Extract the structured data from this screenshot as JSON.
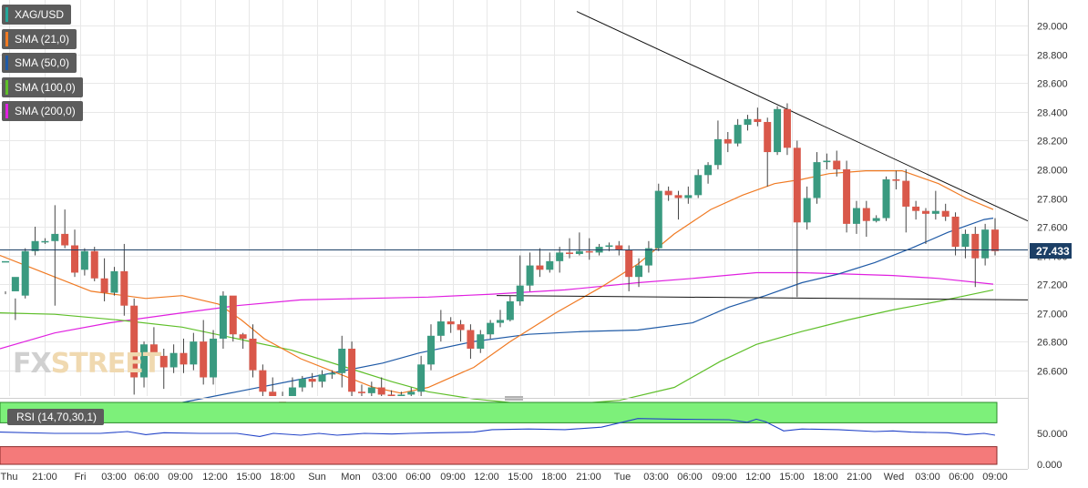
{
  "legend": [
    {
      "label": "XAG/USD",
      "color": "#26a69a"
    },
    {
      "label": "SMA (21,0)",
      "color": "#f07a23"
    },
    {
      "label": "SMA (50,0)",
      "color": "#1f5aa6"
    },
    {
      "label": "SMA (100,0)",
      "color": "#5fbf2a"
    },
    {
      "label": "SMA (200,0)",
      "color": "#e020e0"
    }
  ],
  "watermark": {
    "part1": "FX",
    "part2": "STREET"
  },
  "rsi_label": "RSI (14,70,30,1)",
  "colors": {
    "up": "#3a9a80",
    "down": "#d9584a",
    "grid": "#e8e8e8",
    "rsi_line": "#2344c8",
    "overbought": "#7df07a",
    "oversold": "#f47a7a"
  },
  "chart_data": {
    "type": "candlestick",
    "symbol": "XAG/USD",
    "ylim": [
      26.42,
      29.18
    ],
    "y_ticks": [
      "29.000",
      "28.800",
      "28.600",
      "28.400",
      "28.200",
      "28.000",
      "27.800",
      "27.600",
      "27.400",
      "27.200",
      "27.000",
      "26.800",
      "26.600"
    ],
    "current_price": "27.433",
    "x_ticks": [
      {
        "label": "Thu",
        "x": 10
      },
      {
        "label": "21:00",
        "x": 49
      },
      {
        "label": "Fri",
        "x": 88
      },
      {
        "label": "03:00",
        "x": 125
      },
      {
        "label": "06:00",
        "x": 161
      },
      {
        "label": "09:00",
        "x": 198
      },
      {
        "label": "12:00",
        "x": 236
      },
      {
        "label": "15:00",
        "x": 273
      },
      {
        "label": "18:00",
        "x": 310
      },
      {
        "label": "Sun",
        "x": 348
      },
      {
        "label": "Mon",
        "x": 385
      },
      {
        "label": "03:00",
        "x": 422
      },
      {
        "label": "06:00",
        "x": 459
      },
      {
        "label": "09:00",
        "x": 497
      },
      {
        "label": "12:00",
        "x": 534
      },
      {
        "label": "15:00",
        "x": 571
      },
      {
        "label": "18:00",
        "x": 608
      },
      {
        "label": "21:00",
        "x": 646
      },
      {
        "label": "Tue",
        "x": 683
      },
      {
        "label": "03:00",
        "x": 720
      },
      {
        "label": "06:00",
        "x": 757
      },
      {
        "label": "09:00",
        "x": 795
      },
      {
        "label": "12:00",
        "x": 832
      },
      {
        "label": "15:00",
        "x": 869
      },
      {
        "label": "18:00",
        "x": 906
      },
      {
        "label": "21:00",
        "x": 943
      },
      {
        "label": "Wed",
        "x": 981
      },
      {
        "label": "03:00",
        "x": 1018
      },
      {
        "label": "06:00",
        "x": 1055
      },
      {
        "label": "09:00",
        "x": 1092
      }
    ],
    "candles": [
      [
        27.36,
        27.36,
        27.15,
        27.13,
        26.95
      ],
      [
        27.15,
        27.25,
        27.1,
        26.95,
        26.88
      ],
      [
        27.12,
        27.43,
        27.45,
        27.1,
        27.12
      ],
      [
        27.43,
        27.5,
        27.6,
        27.4,
        27.36
      ],
      [
        27.5,
        27.5,
        27.52,
        27.48,
        27.48
      ],
      [
        27.5,
        27.55,
        27.75,
        27.05,
        27.5
      ],
      [
        27.55,
        27.47,
        27.72,
        27.45,
        27.45
      ],
      [
        27.47,
        27.28,
        27.58,
        27.25,
        27.18
      ],
      [
        27.3,
        27.43,
        27.45,
        27.26,
        27.28
      ],
      [
        27.43,
        27.24,
        27.46,
        27.22,
        27.2
      ],
      [
        27.24,
        27.14,
        27.38,
        27.08,
        27.05
      ],
      [
        27.14,
        27.29,
        27.32,
        27.12,
        27.12
      ],
      [
        27.29,
        27.05,
        27.48,
        26.98,
        26.95
      ],
      [
        27.05,
        26.55,
        27.1,
        26.43,
        26.52
      ],
      [
        26.55,
        26.78,
        26.8,
        26.48,
        26.5
      ],
      [
        26.78,
        26.7,
        26.9,
        26.62,
        26.65
      ],
      [
        26.7,
        26.62,
        26.75,
        26.47,
        26.58
      ],
      [
        26.62,
        26.72,
        26.78,
        26.58,
        26.6
      ],
      [
        26.72,
        26.64,
        26.82,
        26.58,
        26.55
      ],
      [
        26.64,
        26.8,
        26.86,
        26.6,
        26.6
      ],
      [
        26.8,
        26.55,
        26.95,
        26.5,
        26.45
      ],
      [
        26.55,
        26.82,
        26.88,
        26.5,
        26.5
      ],
      [
        26.82,
        27.12,
        27.15,
        26.75,
        26.7
      ],
      [
        27.12,
        26.85,
        26.92,
        26.8,
        26.78
      ],
      [
        26.85,
        26.82,
        26.86,
        26.75,
        26.7
      ],
      [
        26.82,
        26.6,
        26.92,
        26.55,
        26.5
      ],
      [
        26.6,
        26.45,
        26.64,
        26.42,
        26.4
      ],
      [
        26.45,
        26.38,
        26.55,
        26.3,
        26.3
      ],
      [
        26.38,
        26.35,
        26.45,
        26.25,
        26.2
      ],
      [
        26.35,
        26.48,
        26.55,
        26.3,
        26.28
      ],
      [
        26.48,
        26.54,
        26.56,
        26.45,
        26.4
      ],
      [
        26.54,
        26.52,
        26.58,
        26.48,
        26.45
      ],
      [
        26.52,
        26.57,
        26.6,
        26.48,
        26.5
      ],
      [
        26.57,
        26.58,
        26.6,
        26.54,
        26.55
      ],
      [
        26.58,
        26.75,
        26.84,
        26.48,
        26.5
      ],
      [
        26.75,
        26.45,
        26.8,
        26.42,
        26.38
      ],
      [
        26.45,
        26.44,
        26.5,
        26.4,
        26.35
      ],
      [
        26.44,
        26.48,
        26.52,
        26.4,
        26.4
      ],
      [
        26.48,
        26.43,
        26.55,
        26.4,
        26.38
      ],
      [
        26.43,
        26.42,
        26.46,
        26.38,
        26.36
      ],
      [
        26.42,
        26.43,
        26.45,
        26.4,
        26.38
      ],
      [
        26.43,
        26.45,
        26.48,
        26.4,
        26.4
      ],
      [
        26.45,
        26.64,
        26.7,
        26.42,
        26.42
      ],
      [
        26.64,
        26.84,
        26.92,
        26.6,
        26.62
      ],
      [
        26.84,
        26.94,
        27.02,
        26.8,
        26.8
      ],
      [
        26.94,
        26.92,
        26.97,
        26.86,
        26.85
      ],
      [
        26.92,
        26.88,
        26.95,
        26.8,
        26.78
      ],
      [
        26.88,
        26.75,
        26.92,
        26.68,
        26.65
      ],
      [
        26.75,
        26.85,
        26.88,
        26.72,
        26.7
      ],
      [
        26.85,
        26.93,
        26.95,
        26.82,
        26.82
      ],
      [
        26.93,
        26.95,
        27.02,
        26.9,
        26.88
      ],
      [
        26.95,
        27.08,
        27.12,
        26.94,
        26.92
      ],
      [
        27.08,
        27.19,
        27.4,
        27.05,
        27.02
      ],
      [
        27.19,
        27.33,
        27.42,
        27.15,
        27.12
      ],
      [
        27.33,
        27.3,
        27.45,
        27.25,
        27.2
      ],
      [
        27.3,
        27.36,
        27.42,
        27.28,
        27.25
      ],
      [
        27.36,
        27.42,
        27.46,
        27.28,
        27.28
      ],
      [
        27.42,
        27.41,
        27.52,
        27.38,
        27.35
      ],
      [
        27.41,
        27.43,
        27.56,
        27.4,
        27.4
      ],
      [
        27.43,
        27.42,
        27.52,
        27.37,
        27.38
      ],
      [
        27.42,
        27.46,
        27.48,
        27.4,
        27.38
      ],
      [
        27.46,
        27.47,
        27.49,
        27.43,
        27.42
      ],
      [
        27.47,
        27.44,
        27.5,
        27.4,
        27.4
      ],
      [
        27.44,
        27.25,
        27.47,
        27.15,
        27.12
      ],
      [
        27.25,
        27.33,
        27.38,
        27.18,
        27.16
      ],
      [
        27.33,
        27.45,
        27.5,
        27.28,
        27.26
      ],
      [
        27.45,
        27.85,
        27.9,
        27.43,
        27.42
      ],
      [
        27.85,
        27.82,
        27.88,
        27.78,
        27.75
      ],
      [
        27.82,
        27.8,
        27.85,
        27.65,
        27.65
      ],
      [
        27.8,
        27.82,
        27.88,
        27.76,
        27.72
      ],
      [
        27.82,
        27.96,
        28.0,
        27.8,
        27.78
      ],
      [
        27.96,
        28.03,
        28.05,
        27.9,
        27.88
      ],
      [
        28.03,
        28.21,
        28.34,
        28.0,
        27.98
      ],
      [
        28.21,
        28.18,
        28.26,
        28.12,
        28.1
      ],
      [
        28.18,
        28.31,
        28.35,
        28.16,
        28.15
      ],
      [
        28.31,
        28.35,
        28.38,
        28.27,
        28.25
      ],
      [
        28.35,
        28.33,
        28.43,
        28.3,
        28.28
      ],
      [
        28.33,
        28.12,
        28.36,
        27.88,
        27.86
      ],
      [
        28.12,
        28.42,
        28.44,
        28.1,
        28.08
      ],
      [
        28.42,
        28.15,
        28.46,
        28.1,
        28.08
      ],
      [
        28.15,
        27.63,
        28.2,
        27.11,
        27.08
      ],
      [
        27.63,
        27.8,
        27.88,
        27.58,
        27.55
      ],
      [
        27.8,
        28.05,
        28.12,
        27.76,
        27.75
      ],
      [
        28.05,
        28.06,
        28.11,
        28.0,
        28.0
      ],
      [
        28.06,
        28.0,
        28.13,
        27.95,
        27.92
      ],
      [
        28.0,
        27.62,
        28.06,
        27.56,
        27.55
      ],
      [
        27.62,
        27.73,
        27.78,
        27.55,
        27.52
      ],
      [
        27.73,
        27.64,
        27.78,
        27.53,
        27.5
      ],
      [
        27.64,
        27.66,
        27.68,
        27.63,
        27.62
      ],
      [
        27.66,
        27.93,
        27.95,
        27.64,
        27.62
      ],
      [
        27.93,
        27.92,
        27.99,
        27.86,
        27.84
      ],
      [
        27.92,
        27.74,
        28.0,
        27.56,
        27.56
      ],
      [
        27.74,
        27.71,
        27.78,
        27.65,
        27.62
      ],
      [
        27.71,
        27.69,
        27.73,
        27.48,
        27.5
      ],
      [
        27.69,
        27.71,
        27.85,
        27.65,
        27.62
      ],
      [
        27.71,
        27.67,
        27.76,
        27.64,
        27.6
      ],
      [
        27.67,
        27.46,
        27.7,
        27.4,
        27.4
      ],
      [
        27.46,
        27.55,
        27.58,
        27.38,
        27.36
      ],
      [
        27.55,
        27.38,
        27.6,
        27.18,
        27.18
      ],
      [
        27.38,
        27.58,
        27.62,
        27.33,
        27.33
      ],
      [
        27.58,
        27.43,
        27.66,
        27.4,
        27.4
      ]
    ],
    "sma21": [
      [
        0,
        27.4
      ],
      [
        40,
        27.3
      ],
      [
        100,
        27.15
      ],
      [
        160,
        27.1
      ],
      [
        200,
        27.12
      ],
      [
        240,
        27.06
      ],
      [
        265,
        26.95
      ],
      [
        290,
        26.82
      ],
      [
        330,
        26.68
      ],
      [
        370,
        26.58
      ],
      [
        410,
        26.48
      ],
      [
        440,
        26.44
      ],
      [
        470,
        26.48
      ],
      [
        520,
        26.62
      ],
      [
        560,
        26.8
      ],
      [
        610,
        27.0
      ],
      [
        660,
        27.18
      ],
      [
        700,
        27.34
      ],
      [
        740,
        27.55
      ],
      [
        780,
        27.72
      ],
      [
        815,
        27.82
      ],
      [
        850,
        27.9
      ],
      [
        880,
        27.93
      ],
      [
        910,
        27.97
      ],
      [
        950,
        27.99
      ],
      [
        990,
        27.99
      ],
      [
        1030,
        27.9
      ],
      [
        1060,
        27.8
      ],
      [
        1090,
        27.72
      ]
    ],
    "sma50": [
      [
        0,
        26.3
      ],
      [
        100,
        26.32
      ],
      [
        180,
        26.35
      ],
      [
        260,
        26.45
      ],
      [
        340,
        26.55
      ],
      [
        420,
        26.65
      ],
      [
        460,
        26.72
      ],
      [
        520,
        26.8
      ],
      [
        580,
        26.85
      ],
      [
        640,
        26.87
      ],
      [
        700,
        26.88
      ],
      [
        760,
        26.93
      ],
      [
        800,
        27.04
      ],
      [
        840,
        27.12
      ],
      [
        880,
        27.21
      ],
      [
        920,
        27.27
      ],
      [
        960,
        27.35
      ],
      [
        1000,
        27.45
      ],
      [
        1040,
        27.56
      ],
      [
        1080,
        27.65
      ],
      [
        1090,
        27.66
      ]
    ],
    "sma100": [
      [
        0,
        27.0
      ],
      [
        60,
        26.99
      ],
      [
        130,
        26.95
      ],
      [
        200,
        26.9
      ],
      [
        260,
        26.82
      ],
      [
        320,
        26.74
      ],
      [
        380,
        26.62
      ],
      [
        430,
        26.52
      ],
      [
        470,
        26.45
      ],
      [
        520,
        26.4
      ],
      [
        600,
        26.35
      ],
      [
        680,
        26.39
      ],
      [
        740,
        26.48
      ],
      [
        790,
        26.66
      ],
      [
        830,
        26.78
      ],
      [
        880,
        26.87
      ],
      [
        930,
        26.95
      ],
      [
        980,
        27.02
      ],
      [
        1030,
        27.08
      ],
      [
        1060,
        27.12
      ],
      [
        1090,
        27.16
      ]
    ],
    "sma200": [
      [
        0,
        26.75
      ],
      [
        60,
        26.86
      ],
      [
        120,
        26.93
      ],
      [
        200,
        27.0
      ],
      [
        260,
        27.05
      ],
      [
        330,
        27.09
      ],
      [
        400,
        27.1
      ],
      [
        470,
        27.11
      ],
      [
        540,
        27.13
      ],
      [
        620,
        27.16
      ],
      [
        700,
        27.21
      ],
      [
        760,
        27.24
      ],
      [
        830,
        27.28
      ],
      [
        880,
        27.28
      ],
      [
        930,
        27.27
      ],
      [
        980,
        27.26
      ],
      [
        1030,
        27.24
      ],
      [
        1090,
        27.2
      ]
    ],
    "trendline_upper": [
      [
        633,
        29.1
      ],
      [
        1128,
        27.64
      ]
    ],
    "trendline_lower": [
      [
        545,
        27.12
      ],
      [
        1128,
        27.09
      ]
    ],
    "rsi": {
      "ylim": [
        0,
        100
      ],
      "y_ticks": [
        "50.000",
        "0.000"
      ],
      "levels": {
        "overbought": 70,
        "oversold": 30
      },
      "values": [
        [
          0,
          52
        ],
        [
          60,
          50
        ],
        [
          110,
          50
        ],
        [
          140,
          53
        ],
        [
          160,
          48
        ],
        [
          180,
          51
        ],
        [
          220,
          50
        ],
        [
          260,
          50
        ],
        [
          285,
          45
        ],
        [
          300,
          50
        ],
        [
          330,
          47
        ],
        [
          350,
          50
        ],
        [
          370,
          47
        ],
        [
          400,
          50
        ],
        [
          430,
          49
        ],
        [
          450,
          50
        ],
        [
          480,
          51
        ],
        [
          520,
          52
        ],
        [
          540,
          56
        ],
        [
          580,
          57
        ],
        [
          620,
          56
        ],
        [
          660,
          60
        ],
        [
          700,
          74
        ],
        [
          740,
          73
        ],
        [
          800,
          72
        ],
        [
          820,
          68
        ],
        [
          830,
          73
        ],
        [
          840,
          69
        ],
        [
          860,
          54
        ],
        [
          880,
          57
        ],
        [
          920,
          56
        ],
        [
          960,
          53
        ],
        [
          980,
          54
        ],
        [
          1000,
          52
        ],
        [
          1040,
          51
        ],
        [
          1060,
          48
        ],
        [
          1080,
          50
        ],
        [
          1092,
          47
        ]
      ]
    }
  }
}
